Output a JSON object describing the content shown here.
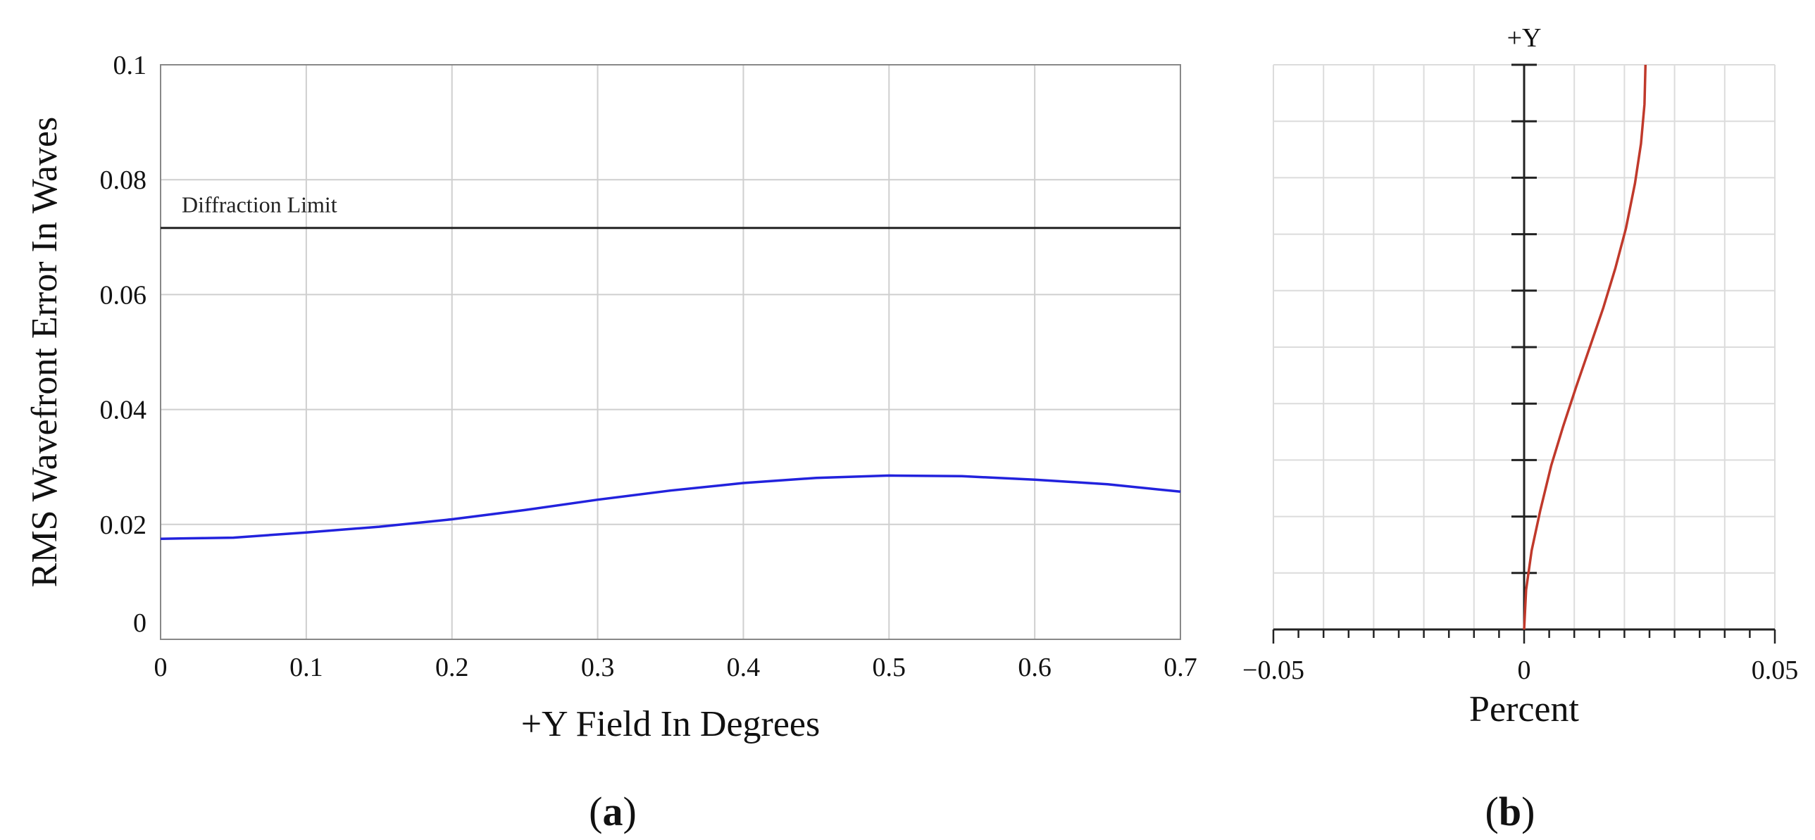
{
  "chart_data": [
    {
      "type": "line",
      "panel_label": "a",
      "title": "",
      "xlabel": "+Y Field In Degrees",
      "ylabel": "RMS Wavefront Error In Waves",
      "xlim": [
        0,
        0.7
      ],
      "ylim": [
        0,
        0.1
      ],
      "xticks": [
        0,
        0.1,
        0.2,
        0.3,
        0.4,
        0.5,
        0.6,
        0.7
      ],
      "yticks": [
        0,
        0.02,
        0.04,
        0.06,
        0.08,
        0.1
      ],
      "xtick_labels": [
        "0",
        "0.1",
        "0.2",
        "0.3",
        "0.4",
        "0.5",
        "0.6",
        "0.7"
      ],
      "ytick_labels": [
        "0",
        "0.02",
        "0.04",
        "0.06",
        "0.08",
        "0.1"
      ],
      "grid": true,
      "series": [
        {
          "color": "#2222dd",
          "x": [
            0,
            0.05,
            0.1,
            0.15,
            0.2,
            0.25,
            0.3,
            0.35,
            0.4,
            0.45,
            0.5,
            0.55,
            0.6,
            0.65,
            0.7
          ],
          "y": [
            0.0175,
            0.0177,
            0.0186,
            0.0196,
            0.0209,
            0.0225,
            0.0243,
            0.0259,
            0.0272,
            0.0281,
            0.0285,
            0.0284,
            0.0278,
            0.027,
            0.0257
          ]
        }
      ],
      "reference_line": {
        "label": "Diffraction Limit",
        "y": 0.0716,
        "color": "#222222"
      }
    },
    {
      "type": "line",
      "panel_label": "b",
      "title": "",
      "xlabel": "Percent",
      "ylabel": "+Y",
      "xlim": [
        -0.05,
        0.05
      ],
      "ylim": [
        0,
        1
      ],
      "xticks": [
        -0.05,
        0,
        0.05
      ],
      "xtick_labels": [
        "−0.05",
        "0",
        "0.05"
      ],
      "grid": true,
      "series": [
        {
          "color": "#c0392b",
          "x": [
            0,
            0.0004,
            0.0015,
            0.0032,
            0.0054,
            0.0078,
            0.0104,
            0.0131,
            0.0158,
            0.0182,
            0.0203,
            0.0221,
            0.0233,
            0.024,
            0.0242
          ],
          "y": [
            0,
            0.07,
            0.14,
            0.21,
            0.29,
            0.36,
            0.43,
            0.5,
            0.57,
            0.64,
            0.71,
            0.79,
            0.86,
            0.93,
            1
          ]
        }
      ]
    }
  ]
}
